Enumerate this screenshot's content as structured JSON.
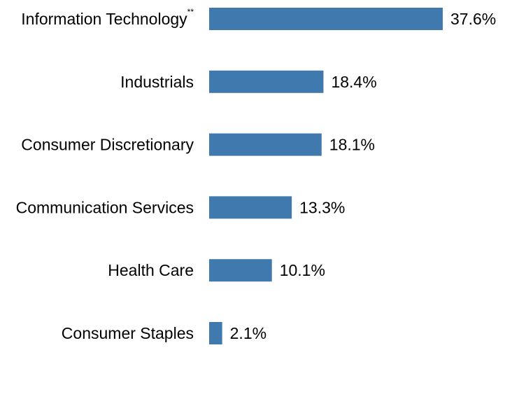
{
  "chart_data": {
    "type": "bar",
    "orientation": "horizontal",
    "categories": [
      "Information Technology",
      "Industrials",
      "Consumer Discretionary",
      "Communication Services",
      "Health Care",
      "Consumer Staples"
    ],
    "category_superscripts": [
      "**",
      "",
      "",
      "",
      "",
      ""
    ],
    "values": [
      37.6,
      18.4,
      18.1,
      13.3,
      10.1,
      2.1
    ],
    "value_labels": [
      "37.6%",
      "18.4%",
      "18.1%",
      "13.3%",
      "10.1%",
      "2.1%"
    ],
    "title": "",
    "xlabel": "",
    "ylabel": "",
    "xlim": [
      0,
      37.6
    ],
    "grid": false,
    "legend": "none",
    "bar_color": "#3f79ae"
  }
}
